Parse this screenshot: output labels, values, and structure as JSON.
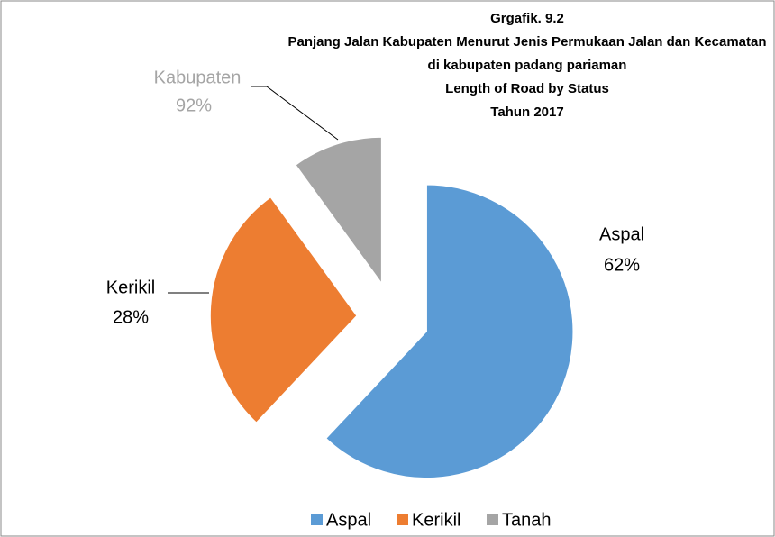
{
  "chart_data": {
    "type": "pie",
    "title": [
      "Grgafik. 9.2",
      "Panjang Jalan Kabupaten Menurut Jenis Permukaan Jalan dan Kecamatan",
      "di kabupaten padang pariaman",
      "Length of Road by Status",
      "Tahun 2017"
    ],
    "categories": [
      "Aspal",
      "Kerikil",
      "Tanah"
    ],
    "values": [
      62,
      28,
      10
    ],
    "value_labels": [
      "62%",
      "28%",
      null
    ],
    "colors": [
      "#5b9bd5",
      "#ed7d31",
      "#a5a5a5"
    ],
    "exploded": true,
    "legend": "bottom",
    "annotations": [
      {
        "title": "Kabupaten",
        "text": "92%"
      }
    ]
  }
}
